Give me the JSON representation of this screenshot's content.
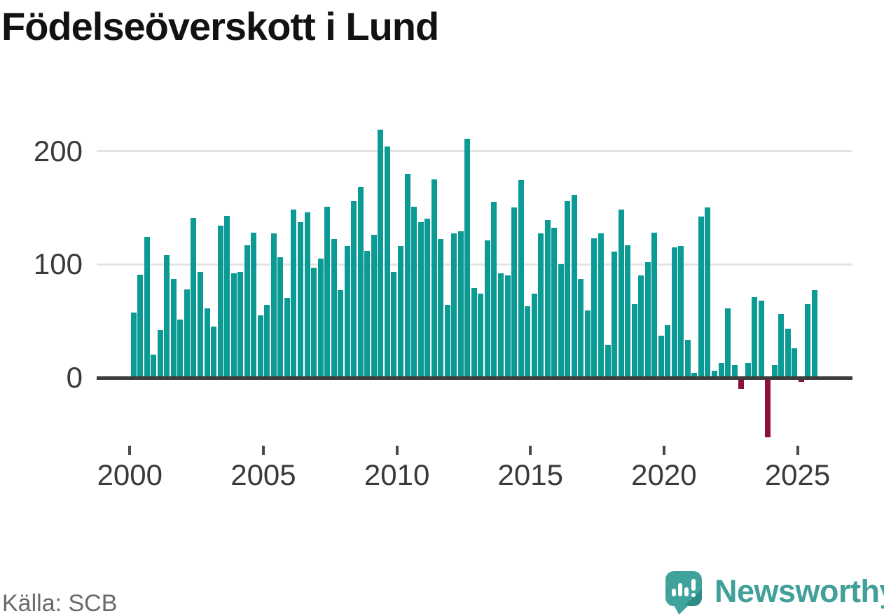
{
  "title": "Födelseöverskott i Lund",
  "source": "Källa: SCB",
  "brand": {
    "name": "Newsworthy",
    "icon": "bar-chart-exclamation-bubble-icon",
    "color": "#41a099"
  },
  "chart_data": {
    "type": "bar",
    "title": "Födelseöverskott i Lund",
    "xlabel": "",
    "ylabel": "",
    "frequency": "quarterly",
    "x_start": "2000-Q1",
    "x_end": "2025-Q3",
    "x_ticks": [
      2000,
      2005,
      2010,
      2015,
      2020,
      2025
    ],
    "y_ticks": [
      0,
      100,
      200
    ],
    "ylim": [
      -60,
      230
    ],
    "grid": "horizontal",
    "legend": "none",
    "positive_color": "#0c9b94",
    "negative_color": "#8e1038",
    "values": [
      57,
      91,
      124,
      20,
      42,
      108,
      87,
      51,
      78,
      141,
      93,
      61,
      45,
      134,
      143,
      92,
      93,
      117,
      128,
      55,
      64,
      127,
      106,
      70,
      148,
      137,
      146,
      97,
      105,
      151,
      122,
      77,
      116,
      156,
      168,
      112,
      126,
      219,
      204,
      93,
      116,
      180,
      151,
      137,
      140,
      175,
      122,
      64,
      127,
      129,
      211,
      79,
      74,
      121,
      155,
      92,
      90,
      150,
      174,
      63,
      74,
      127,
      139,
      132,
      100,
      156,
      161,
      87,
      59,
      123,
      127,
      29,
      111,
      148,
      117,
      65,
      90,
      102,
      128,
      37,
      46,
      115,
      116,
      33,
      4,
      142,
      150,
      6,
      13,
      61,
      11,
      -9,
      13,
      71,
      68,
      -52,
      11,
      56,
      43,
      26,
      -3,
      65,
      77
    ]
  }
}
